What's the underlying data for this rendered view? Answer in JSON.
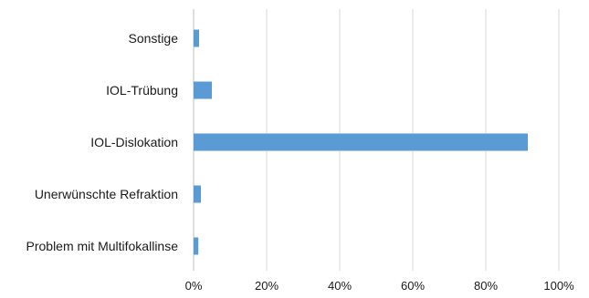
{
  "chart_data": {
    "type": "bar",
    "orientation": "horizontal",
    "categories": [
      "Sonstige",
      "IOL-Trübung",
      "IOL-Dislokation",
      "Unerwünschte Refraktion",
      "Problem mit Multifokallinse"
    ],
    "values": [
      1.5,
      5.0,
      91.5,
      2.0,
      1.3
    ],
    "xlim": [
      0,
      100
    ],
    "ticks": [
      0,
      20,
      40,
      60,
      80,
      100
    ],
    "tick_labels": [
      "0%",
      "20%",
      "40%",
      "60%",
      "80%",
      "100%"
    ],
    "bar_color": "#5b9bd5",
    "grid": true,
    "title": "",
    "xlabel": "",
    "ylabel": ""
  }
}
